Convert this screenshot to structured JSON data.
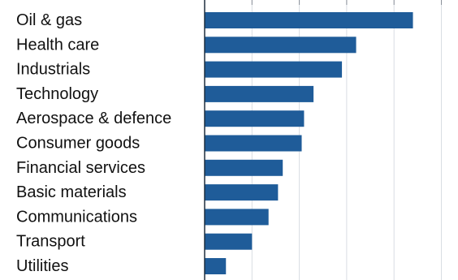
{
  "chart_data": {
    "type": "bar",
    "orientation": "horizontal",
    "categories": [
      "Oil & gas",
      "Health care",
      "Industrials",
      "Technology",
      "Aerospace & defence",
      "Consumer goods",
      "Financial services",
      "Basic materials",
      "Communications",
      "Transport",
      "Utilities"
    ],
    "values": [
      44,
      32,
      29,
      23,
      21,
      20.5,
      16.5,
      15.5,
      13.5,
      10,
      4.5
    ],
    "xlim": [
      0,
      50
    ],
    "grid": true,
    "colors": {
      "bar": "#1f5c99",
      "grid": "#d9dde3",
      "axis": "#1f2f3f",
      "text": "#111111"
    }
  }
}
